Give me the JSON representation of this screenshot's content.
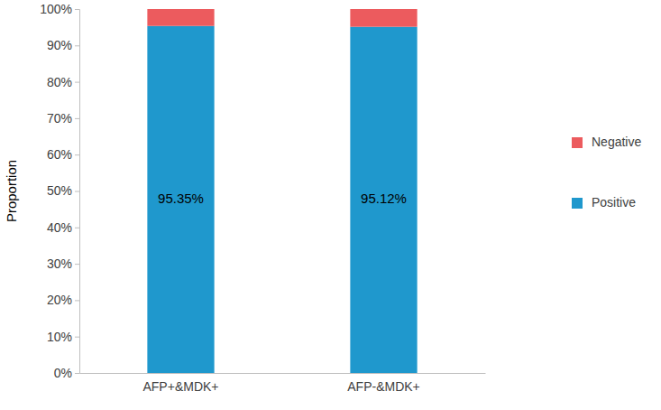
{
  "chart_data": {
    "type": "bar",
    "stacked": true,
    "y_label": "Proportion",
    "categories": [
      "AFP+&MDK+",
      "AFP-&MDK+"
    ],
    "series": [
      {
        "name": "Positive",
        "color": "#1f98cd",
        "values": [
          95.35,
          95.12
        ],
        "data_labels": true,
        "value_labels": [
          "95.35%",
          "95.12%"
        ]
      },
      {
        "name": "Negative",
        "color": "#ec5b5e",
        "values": [
          4.65,
          4.88
        ]
      }
    ],
    "ylim": [
      0,
      100
    ],
    "yticks": [
      {
        "value": 0,
        "label": "0%"
      },
      {
        "value": 10,
        "label": "10%"
      },
      {
        "value": 20,
        "label": "20%"
      },
      {
        "value": 30,
        "label": "30%"
      },
      {
        "value": 40,
        "label": "40%"
      },
      {
        "value": 50,
        "label": "50%"
      },
      {
        "value": 60,
        "label": "60%"
      },
      {
        "value": 70,
        "label": "70%"
      },
      {
        "value": 80,
        "label": "80%"
      },
      {
        "value": 90,
        "label": "90%"
      },
      {
        "value": 100,
        "label": "100%"
      }
    ],
    "legend": "right",
    "grid": false
  }
}
